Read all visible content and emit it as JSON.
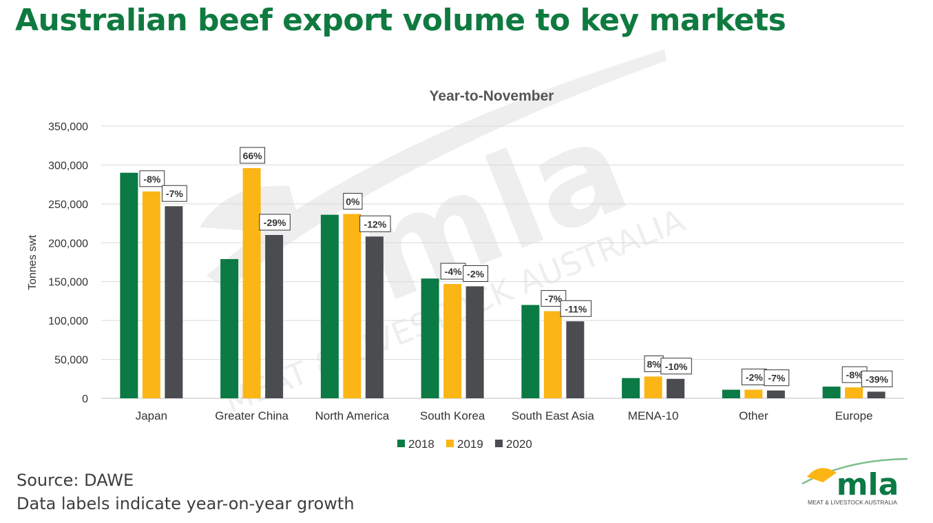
{
  "title": "Australian beef export volume to key markets",
  "footer": {
    "source": "Source: DAWE",
    "note": "Data labels indicate year-on-year growth"
  },
  "logo": {
    "wordmark": "mla",
    "tagline": "MEAT & LIVESTOCK AUSTRALIA"
  },
  "watermark": {
    "wordmark": "mla",
    "tagline": "MEAT & LIVESTOCK AUSTRALIA"
  },
  "colors": {
    "title": "#0f7a40",
    "2018": "#0b7a45",
    "2019": "#fbb515",
    "2020": "#4a4c50",
    "grid": "#d9d9d9"
  },
  "chart_data": {
    "type": "bar",
    "title": "Year-to-November",
    "ylabel": "Tonnes swt",
    "xlabel": "",
    "ylim": [
      0,
      350000
    ],
    "yticks": [
      0,
      50000,
      100000,
      150000,
      200000,
      250000,
      300000,
      350000
    ],
    "ytick_labels": [
      "0",
      "50,000",
      "100,000",
      "150,000",
      "200,000",
      "250,000",
      "300,000",
      "350,000"
    ],
    "grid": true,
    "legend_position": "bottom",
    "categories": [
      "Japan",
      "Greater China",
      "North America",
      "South Korea",
      "South East Asia",
      "MENA-10",
      "Other",
      "Europe"
    ],
    "series": [
      {
        "name": "2018",
        "color": "#0b7a45",
        "values": [
          290000,
          179000,
          236000,
          154000,
          120000,
          26000,
          11000,
          15000
        ],
        "labels": [
          "",
          "",
          "",
          "",
          "",
          "",
          "",
          ""
        ]
      },
      {
        "name": "2019",
        "color": "#fbb515",
        "values": [
          266000,
          296000,
          237000,
          147000,
          112000,
          28000,
          11000,
          14000
        ],
        "labels": [
          "-8%",
          "66%",
          "0%",
          "-4%",
          "-7%",
          "8%",
          "-2%",
          "-8%"
        ]
      },
      {
        "name": "2020",
        "color": "#4a4c50",
        "values": [
          247000,
          210000,
          208000,
          144000,
          99000,
          25000,
          10000,
          8500
        ],
        "labels": [
          "-7%",
          "-29%",
          "-12%",
          "-2%",
          "-11%",
          "-10%",
          "-7%",
          "-39%"
        ]
      }
    ]
  }
}
